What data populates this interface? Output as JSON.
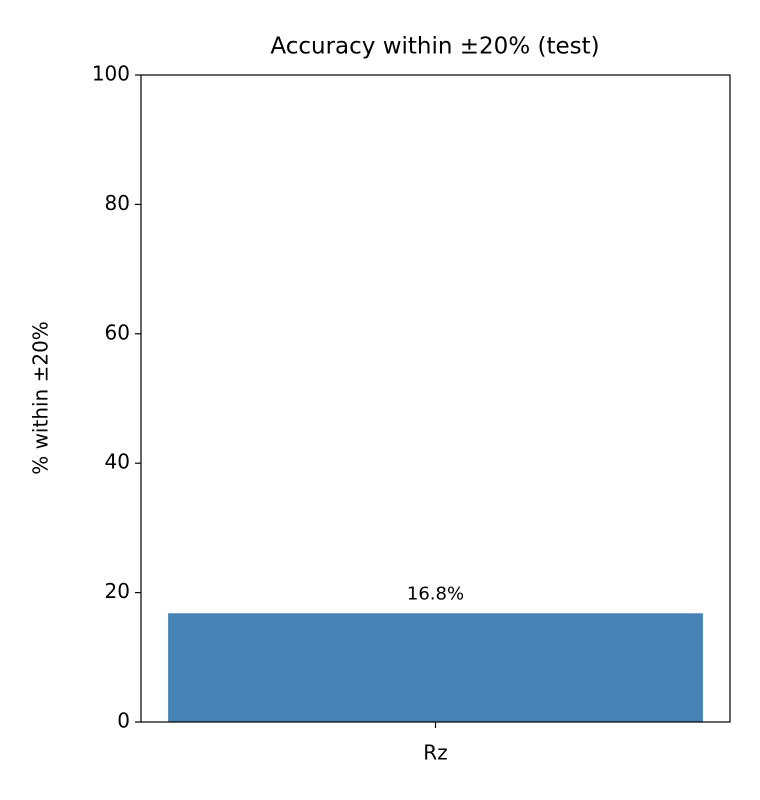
{
  "chart_data": {
    "type": "bar",
    "title": "Accuracy within ±20% (test)",
    "y_label": "% within ±20%",
    "categories": [
      "Rz"
    ],
    "values": [
      16.8
    ],
    "value_labels": [
      "16.8%"
    ],
    "color": "#4682b4",
    "ylim": [
      0,
      100
    ],
    "yticks": [
      0,
      20,
      40,
      60,
      80,
      100
    ],
    "grid": false
  }
}
